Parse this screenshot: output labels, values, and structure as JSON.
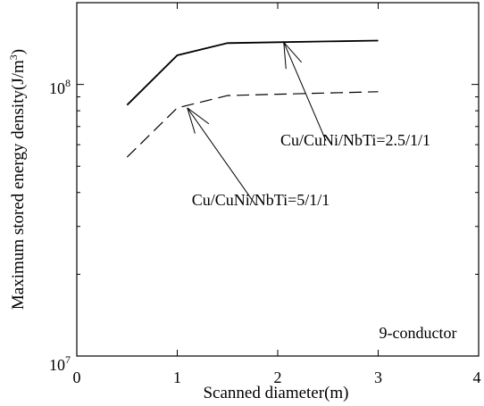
{
  "chart_data": {
    "type": "line",
    "title": "",
    "xlabel": "Scanned diameter(m)",
    "ylabel": "Maximum stored energy density(J/m^3)",
    "ylabel_main": "Maximum stored energy density(J/m",
    "ylabel_sup": "3",
    "ylabel_close": ")",
    "xlim": [
      0,
      4
    ],
    "ylim": [
      10000000,
      200000000
    ],
    "yscale": "log",
    "x_ticks": [
      "0",
      "1",
      "2",
      "3",
      "4"
    ],
    "y_ticks": [
      {
        "base": "10",
        "exp": "7",
        "value": 10000000
      },
      {
        "base": "10",
        "exp": "8",
        "value": 100000000
      }
    ],
    "grid": false,
    "legend": "none",
    "series": [
      {
        "style": "solid",
        "color": "#000000",
        "x": [
          0.5,
          1.0,
          1.5,
          2.0,
          2.5,
          3.0
        ],
        "y": [
          84000000,
          128000000,
          142000000,
          143000000,
          144000000,
          145000000
        ]
      },
      {
        "style": "dashed",
        "color": "#000000",
        "x": [
          0.5,
          1.0,
          1.5,
          2.0,
          2.5,
          3.0
        ],
        "y": [
          54000000,
          82000000,
          91000000,
          92000000,
          93000000,
          94000000
        ]
      }
    ],
    "annotations": [
      {
        "text": "Cu/CuNi/NbTi=2.5/1/1",
        "x": 2.06,
        "y": 143000000,
        "label_x": 2.48,
        "label_y": 62000000
      },
      {
        "text": "Cu/CuNi/NbTi=5/1/1",
        "x": 1.1,
        "y": 82000000,
        "label_x": 1.78,
        "label_y": 36000000
      },
      {
        "text": "9-conductor",
        "x": 3.65,
        "y": 11800000
      }
    ]
  }
}
